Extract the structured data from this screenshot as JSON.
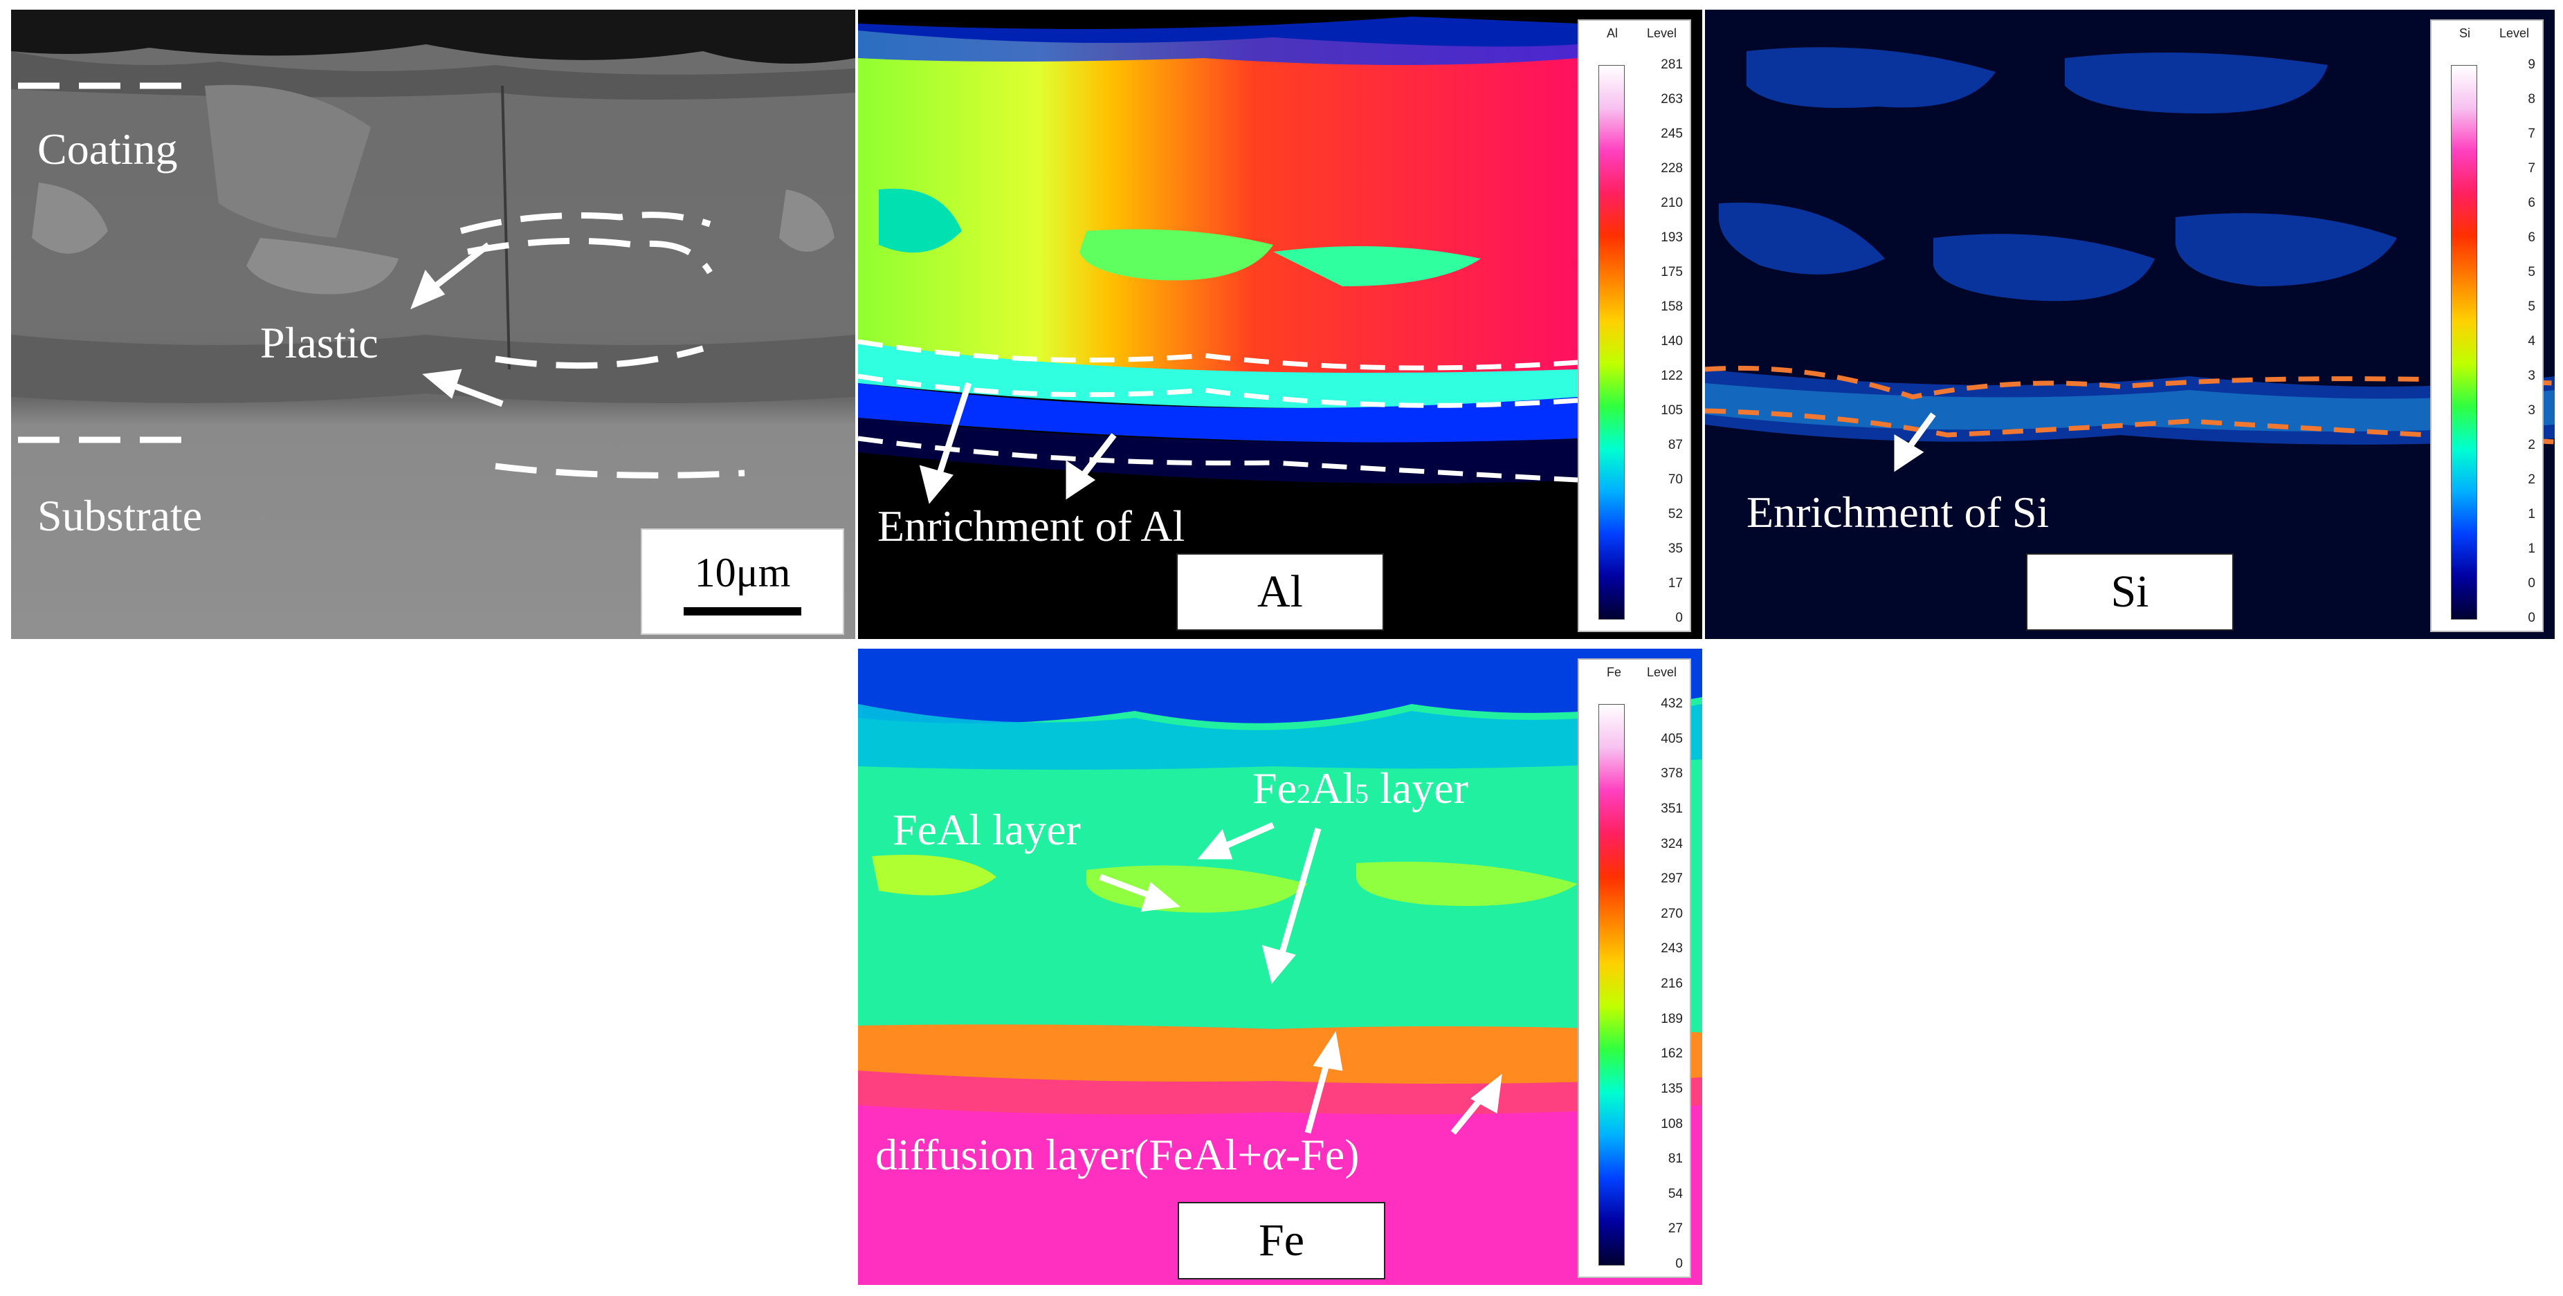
{
  "panels": {
    "sem": {
      "coating": "Coating",
      "plastic": "Plastic",
      "substrate": "Substrate",
      "scale_bar": "10μm"
    },
    "al": {
      "annotation": "Enrichment of Al",
      "element_box": "Al",
      "legend": {
        "element": "Al",
        "level_label": "Level",
        "levels": [
          "281",
          "263",
          "245",
          "228",
          "210",
          "193",
          "175",
          "158",
          "140",
          "122",
          "105",
          "87",
          "70",
          "52",
          "35",
          "17",
          "0"
        ]
      }
    },
    "si": {
      "annotation": "Enrichment of Si",
      "element_box": "Si",
      "legend": {
        "element": "Si",
        "level_label": "Level",
        "levels": [
          "9",
          "8",
          "7",
          "7",
          "6",
          "6",
          "5",
          "5",
          "4",
          "3",
          "3",
          "2",
          "2",
          "1",
          "1",
          "0",
          "0"
        ]
      }
    },
    "fe": {
      "feal_layer": "FeAl layer",
      "fe2al5_prefix": "Fe",
      "fe2al5_sub1": "2",
      "fe2al5_mid": "Al",
      "fe2al5_sub2": "5",
      "fe2al5_suffix": " layer",
      "diffusion_prefix": "diffusion layer(FeAl+",
      "diffusion_alpha": "α",
      "diffusion_suffix": "-Fe)",
      "element_box": "Fe",
      "legend": {
        "element": "Fe",
        "level_label": "Level",
        "levels": [
          "432",
          "405",
          "378",
          "351",
          "324",
          "297",
          "270",
          "243",
          "216",
          "189",
          "162",
          "135",
          "108",
          "81",
          "54",
          "27",
          "0"
        ]
      }
    }
  },
  "colors": {
    "map_gradient": [
      "#ffffff",
      "#f7c0f0",
      "#ff40c0",
      "#ff2060",
      "#ff3000",
      "#ff8000",
      "#ffd000",
      "#c0ff00",
      "#30ff40",
      "#00ffd0",
      "#00b0ff",
      "#0040ff",
      "#0000a0",
      "#000030"
    ],
    "si_dash": "#f07830",
    "dash_white": "#ffffff"
  }
}
